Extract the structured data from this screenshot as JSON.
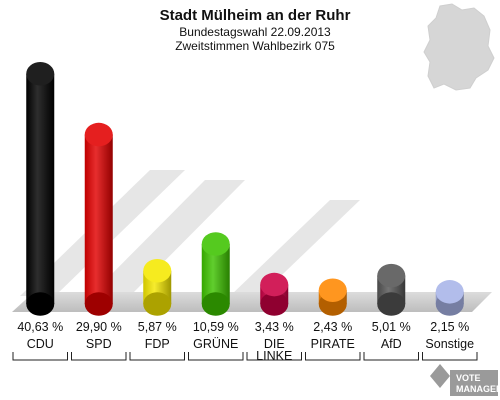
{
  "chart_data": {
    "type": "bar",
    "title": "Stadt Mülheim an der Ruhr",
    "subtitle_lines": [
      "Bundestagswahl 22.09.2013",
      "Zweitstimmen Wahlbezirk 075"
    ],
    "categories": [
      "CDU",
      "SPD",
      "FDP",
      "GRÜNE",
      "DIE LINKE",
      "PIRATE",
      "AfD",
      "Sonstige"
    ],
    "values": [
      40.63,
      29.9,
      5.87,
      10.59,
      3.43,
      2.43,
      5.01,
      2.15
    ],
    "value_labels": [
      "40,63 %",
      "29,90 %",
      "5,87 %",
      "10,59 %",
      "3,43 %",
      "2,43 %",
      "5,01 %",
      "2,15 %"
    ],
    "colors": [
      "#000000",
      "#e20000",
      "#f5e800",
      "#3ec300",
      "#cc0044",
      "#ff8800",
      "#555555",
      "#a8b4e8"
    ],
    "ylim": [
      0,
      42
    ],
    "grid": false,
    "legend": "none"
  },
  "watermark": {
    "text_lines": [
      "VOTE",
      "MANAGER"
    ]
  },
  "colors": {
    "floor": "#c8c8c8",
    "stripe": "#e0e0e0",
    "map": "#d4d4d4"
  }
}
